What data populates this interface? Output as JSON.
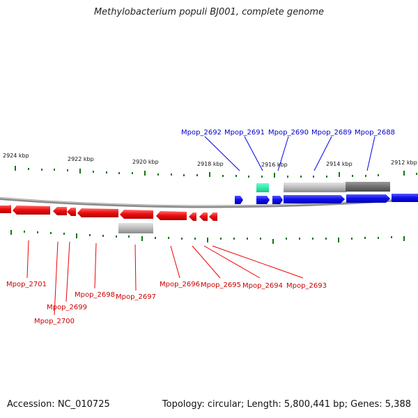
{
  "title": "Methylobacterium populi BJ001, complete genome",
  "footer": {
    "accession": "Accession: NC_010725",
    "summary": "Topology: circular; Length: 5,800,441 bp; Genes: 5,388"
  },
  "colors": {
    "forward_gene": "#0000ee",
    "reverse_gene": "#ee0000",
    "rna_gene": "#22dd99",
    "tick": "#117711",
    "backbone": "#777777"
  },
  "scale_labels": [
    "2924 kbp",
    "2922 kbp",
    "2920 kbp",
    "2918 kbp",
    "2916 kbp",
    "2914 kbp",
    "2912 kbp"
  ],
  "forward_labels": [
    "Mpop_2692",
    "Mpop_2691",
    "Mpop_2690",
    "Mpop_2689",
    "Mpop_2688"
  ],
  "reverse_labels": [
    "Mpop_2701",
    "Mpop_2700",
    "Mpop_2699",
    "Mpop_2698",
    "Mpop_2697",
    "Mpop_2696",
    "Mpop_2695",
    "Mpop_2694",
    "Mpop_2693"
  ]
}
